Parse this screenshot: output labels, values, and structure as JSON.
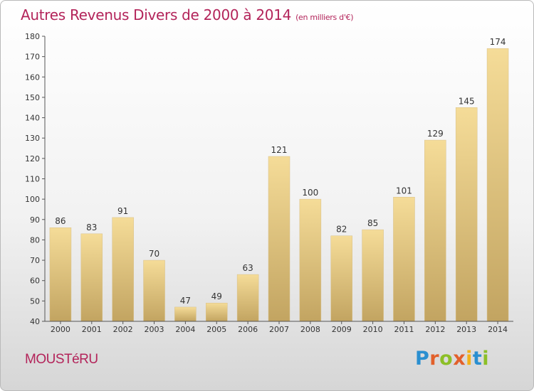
{
  "header": {
    "title": "Autres Revenus Divers de 2000 à 2014",
    "unit": "(en milliers d'€)"
  },
  "footer": {
    "commune": "MOUSTéRU",
    "logo_letters": [
      "P",
      "r",
      "o",
      "x",
      "i",
      "t",
      "i"
    ]
  },
  "colors": {
    "title": "#b3245a",
    "bar_light": "#f5dc98",
    "bar_dark": "#c2a461",
    "axis": "#555555"
  },
  "chart_data": {
    "type": "bar",
    "title": "Autres Revenus Divers de 2000 à 2014",
    "xlabel": "",
    "ylabel": "",
    "categories": [
      "2000",
      "2001",
      "2002",
      "2003",
      "2004",
      "2005",
      "2006",
      "2007",
      "2008",
      "2009",
      "2010",
      "2011",
      "2012",
      "2013",
      "2014"
    ],
    "values": [
      86,
      83,
      91,
      70,
      47,
      49,
      63,
      121,
      100,
      82,
      85,
      101,
      129,
      145,
      174
    ],
    "ylim": [
      40,
      180
    ],
    "yticks": [
      40,
      50,
      60,
      70,
      80,
      90,
      100,
      110,
      120,
      130,
      140,
      150,
      160,
      170,
      180
    ],
    "grid": false,
    "legend": "none"
  }
}
